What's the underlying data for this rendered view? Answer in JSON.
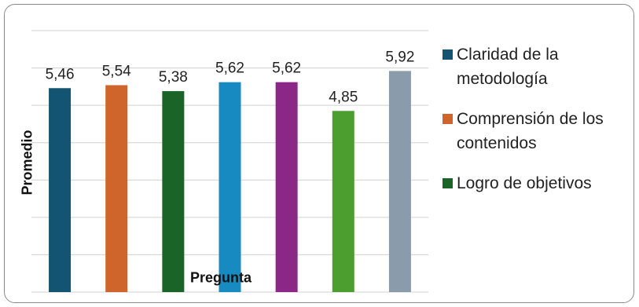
{
  "chart_data": {
    "type": "bar",
    "categories": [
      "Claridad de la metodología",
      "Comprensión de los contenidos",
      "Logro de objetivos",
      "",
      "",
      "",
      ""
    ],
    "values": [
      5.46,
      5.54,
      5.38,
      5.62,
      5.62,
      4.85,
      5.92
    ],
    "value_labels": [
      "5,46",
      "5,54",
      "5,38",
      "5,62",
      "5,62",
      "4,85",
      "5,92"
    ],
    "colors": [
      "#135472",
      "#d0652b",
      "#1a6428",
      "#178ac2",
      "#8b2786",
      "#4c9e2f",
      "#8a9cac"
    ],
    "xlabel": "Pregunta",
    "ylabel": "Promedio",
    "ylim": [
      0,
      7
    ],
    "grid": true,
    "legend_position": "right",
    "legend": [
      {
        "label": "Claridad de la metodología",
        "color": "#135472"
      },
      {
        "label": "Comprensión de los contenidos",
        "color": "#d0652b"
      },
      {
        "label": "Logro de objetivos",
        "color": "#1a6428"
      }
    ]
  }
}
